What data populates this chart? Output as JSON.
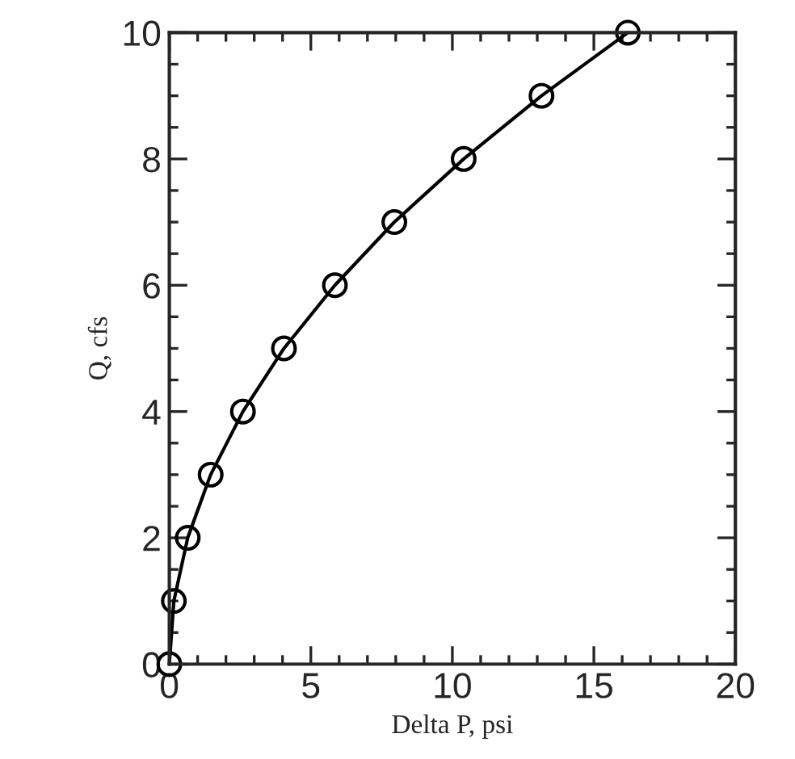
{
  "chart_data": {
    "type": "line",
    "xlabel": "Delta P, psi",
    "ylabel": "Q, cfs",
    "x": [
      0,
      0.16,
      0.65,
      1.46,
      2.6,
      4.05,
      5.85,
      7.95,
      10.4,
      13.15,
      16.2
    ],
    "series": [
      {
        "color": "#000000",
        "values": [
          0,
          1,
          2,
          3,
          4,
          5,
          6,
          7,
          8,
          9,
          10
        ]
      }
    ],
    "marker": "circle",
    "line_style": "solid",
    "xlim": [
      0,
      20
    ],
    "xticks": [
      0,
      5,
      10,
      15,
      20
    ],
    "ylim": [
      0,
      10
    ],
    "yticks": [
      0,
      2,
      4,
      6,
      8,
      10
    ],
    "grid": false
  }
}
